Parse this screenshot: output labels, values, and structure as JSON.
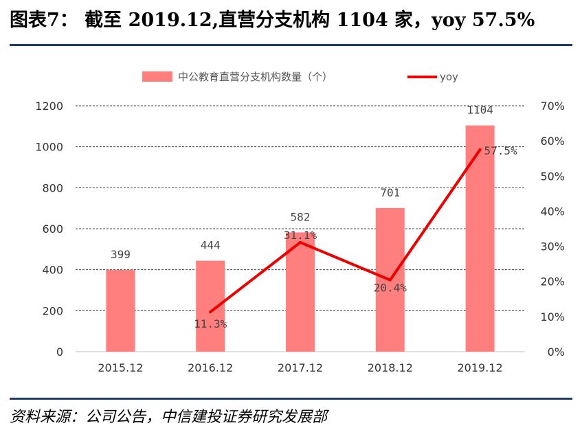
{
  "header": {
    "title": "图表7：  截至 2019.12,直营分支机构 1104 家，yoy 57.5%"
  },
  "footer": {
    "source": "资料来源：公司公告，中信建投证券研究发展部"
  },
  "colors": {
    "bar": "#ff7f7f",
    "line": "#ee0000",
    "rule": "#1f3c66"
  },
  "chart_data": {
    "type": "bar",
    "categories": [
      "2015.12",
      "2016.12",
      "2017.12",
      "2018.12",
      "2019.12"
    ],
    "series": [
      {
        "name": "中公教育直营分支机构数量（个）",
        "type": "bar",
        "axis": "left",
        "values": [
          399,
          444,
          582,
          701,
          1104
        ],
        "labels": [
          "399",
          "444",
          "582",
          "701",
          "1104"
        ]
      },
      {
        "name": "yoy",
        "type": "line",
        "axis": "right",
        "values": [
          null,
          11.3,
          31.1,
          20.4,
          57.5
        ],
        "labels": [
          "",
          "11.3%",
          "31.1%",
          "20.4%",
          "57.5%"
        ]
      }
    ],
    "y_left": {
      "min": 0,
      "max": 1200,
      "ticks": [
        "0",
        "200",
        "400",
        "600",
        "800",
        "1000",
        "1200"
      ]
    },
    "y_right": {
      "min": 0,
      "max": 70,
      "ticks": [
        "0%",
        "10%",
        "20%",
        "30%",
        "40%",
        "50%",
        "60%",
        "70%"
      ]
    },
    "grid": true,
    "legend_position": "top"
  }
}
